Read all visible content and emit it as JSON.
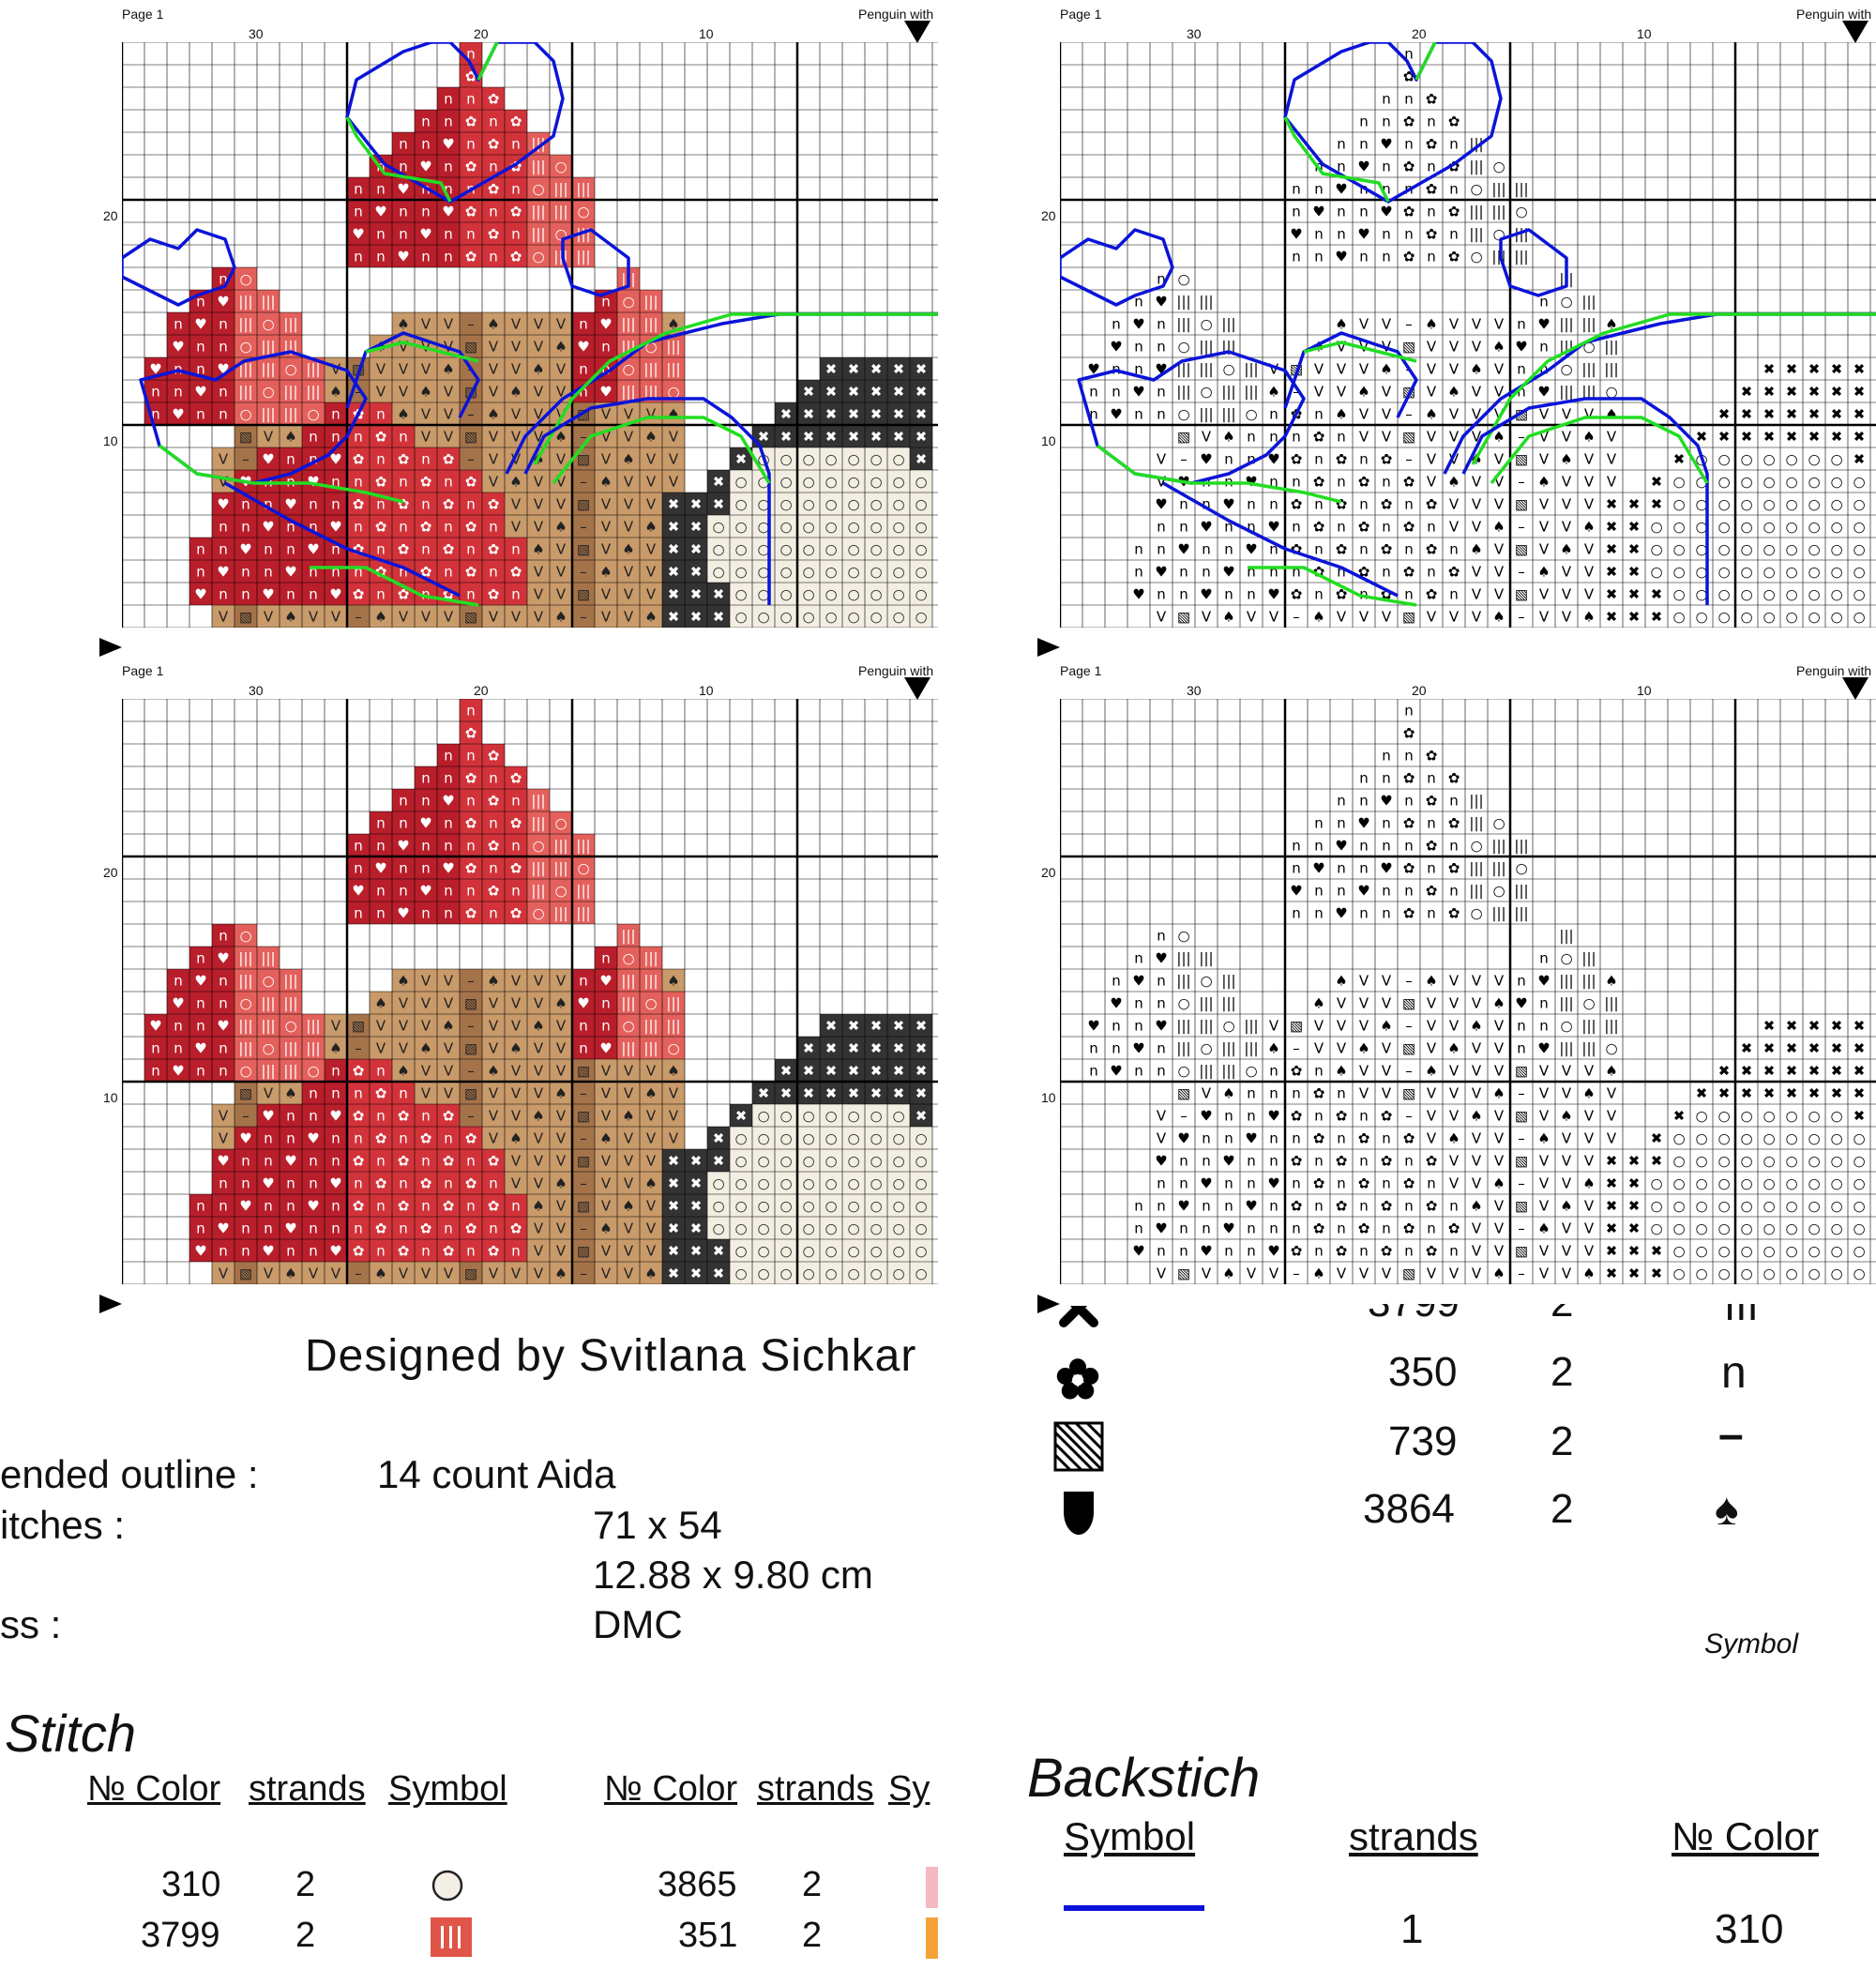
{
  "panels": [
    {
      "page_label": "Page 1",
      "title": "Penguin with",
      "cols": [
        "30",
        "20",
        "10"
      ],
      "rows": [
        "20",
        "10"
      ],
      "style": "color-outline"
    },
    {
      "page_label": "Page 1",
      "title": "Penguin with",
      "cols": [
        "30",
        "20",
        "10"
      ],
      "rows": [
        "20",
        "10"
      ],
      "style": "symbol-outline"
    },
    {
      "page_label": "Page 1",
      "title": "Penguin with",
      "cols": [
        "30",
        "20",
        "10"
      ],
      "rows": [
        "20",
        "10"
      ],
      "style": "color"
    },
    {
      "page_label": "Page 1",
      "title": "Penguin with",
      "cols": [
        "30",
        "20",
        "10"
      ],
      "rows": [
        "20",
        "10"
      ],
      "style": "symbol"
    }
  ],
  "designer": "Designed by Svitlana Sichkar",
  "info": {
    "outline_label": "ended outline :",
    "outline_value": "14 count Aida",
    "stitches_label": "itches :",
    "stitches_value": "71 x 54",
    "size_value": "12.88 x 9.80 cm",
    "floss_label": "ss :",
    "floss_value": "DMC"
  },
  "stitch_heading": "Stitch",
  "stitch_table": {
    "headers": [
      "№ Color",
      "strands",
      "Symbol"
    ],
    "headers2": [
      "№ Color",
      "strands",
      "Sy"
    ],
    "left_rows": [
      {
        "color": "310",
        "strands": "2",
        "symbol": "circle",
        "fill": "#f4efe4"
      },
      {
        "color": "3799",
        "strands": "2",
        "symbol": "III",
        "fill": "#e05548"
      }
    ],
    "right_rows": [
      {
        "color": "3865",
        "strands": "2",
        "fill": "#f2b9c1"
      },
      {
        "color": "351",
        "strands": "2",
        "fill": "#f5a23a"
      }
    ]
  },
  "right_legend": [
    {
      "icon": "flower-icon",
      "color": "350",
      "strands": "2",
      "symbol": "n"
    },
    {
      "icon": "hatched-square-icon",
      "color": "739",
      "strands": "2",
      "symbol": "–"
    },
    {
      "icon": "drop-icon",
      "color": "3864",
      "strands": "2",
      "symbol": "♠"
    }
  ],
  "right_symbol_label": "Symbol",
  "backstitch": {
    "heading": "Backstich",
    "headers": [
      "Symbol",
      "strands",
      "№ Color"
    ],
    "rows": [
      {
        "line_color": "#0a14d8",
        "strands": "1",
        "color": "310"
      }
    ]
  },
  "colors": {
    "dark_red": "#b91e2b",
    "red": "#d2333a",
    "pink_red": "#e4605c",
    "tan": "#c99a6a",
    "brown": "#a5734a",
    "black": "#333333",
    "cream": "#f3eee2",
    "orange": "#f4a128",
    "pink": "#f5b8c2",
    "blue_outline": "#0a14d8",
    "green_outline": "#22dd22"
  }
}
